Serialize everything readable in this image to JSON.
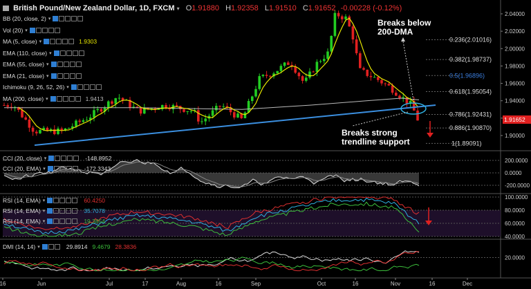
{
  "header": {
    "symbol": "British Pound/New Zealand Dollar, 1D, FXCM",
    "open_label": "O",
    "open": "1.91880",
    "high_label": "H",
    "high": "1.92358",
    "low_label": "L",
    "low": "1.91510",
    "close_label": "C",
    "close": "1.91652",
    "change": "-0.00228 (-0.12%)"
  },
  "indicators": [
    {
      "label": "BB (20, close, 2)",
      "value": ""
    },
    {
      "label": "Vol (20)",
      "value": ""
    },
    {
      "label": "MA (5, close)",
      "value": "1.9303",
      "color": "#e6e600"
    },
    {
      "label": "EMA (110, close)",
      "value": ""
    },
    {
      "label": "EMA (55, close)",
      "value": ""
    },
    {
      "label": "EMA (21, close)",
      "value": ""
    },
    {
      "label": "Ichimoku (9, 26, 52, 26)",
      "value": ""
    },
    {
      "label": "MA (200, close)",
      "value": "1.9413",
      "color": "#bbbbbb"
    }
  ],
  "price_axis": [
    "2.04000",
    "2.02000",
    "2.00000",
    "1.98000",
    "1.96000",
    "1.94000",
    "1.92000",
    "1.90000"
  ],
  "current_price": "1.91652",
  "fib_levels": [
    {
      "label": "0.236(2.01016)",
      "color": "#dddddd"
    },
    {
      "label": "0.382(1.98737)",
      "color": "#dddddd"
    },
    {
      "label": "0.5(1.96896)",
      "color": "#3b7fe0"
    },
    {
      "label": "0.618(1.95054)",
      "color": "#dddddd"
    },
    {
      "label": "0.786(1.92431)",
      "color": "#dddddd"
    },
    {
      "label": "0.886(1.90870)",
      "color": "#dddddd"
    },
    {
      "label": "1(1.89091)",
      "color": "#dddddd"
    }
  ],
  "annotations": {
    "dma": "Breaks below\n200-DMA",
    "trend": "Breaks strong\ntrendline support"
  },
  "cci_pane": {
    "items": [
      {
        "label": "CCI (20, close)",
        "value": "-148.8952"
      },
      {
        "label": "CCI (20, EMA)",
        "value": "-172.3343"
      }
    ],
    "axis": [
      "200.0000",
      "0.0000",
      "-200.0000"
    ]
  },
  "rsi_pane": {
    "items": [
      {
        "label": "RSI (14, EMA)",
        "value": "60.4250",
        "color": "#e03030"
      },
      {
        "label": "RSI (14, EMA)",
        "value": "35.7078",
        "color": "#2fb0e0"
      },
      {
        "label": "RSI (14, EMA)",
        "value": "19.3854",
        "color": "#3cc03c"
      }
    ],
    "axis": [
      "100.0000",
      "80.0000",
      "60.0000",
      "40.0000"
    ]
  },
  "dmi_pane": {
    "label": "DMI (14, 14)",
    "values": [
      {
        "v": "29.8914",
        "color": "#dddddd"
      },
      {
        "v": "9.4679",
        "color": "#3cc03c"
      },
      {
        "v": "28.3836",
        "color": "#e03030"
      }
    ],
    "axis": [
      "20.0000"
    ]
  },
  "time_axis": [
    "16",
    "Jun",
    "Jul",
    "17",
    "Aug",
    "16",
    "Sep",
    "Oct",
    "16",
    "Nov",
    "16",
    "Dec"
  ],
  "colors": {
    "up": "#22cc22",
    "down": "#e02020",
    "trend": "#3b8fe0",
    "ma5": "#e6e600",
    "ma200": "#bbbbbb"
  }
}
